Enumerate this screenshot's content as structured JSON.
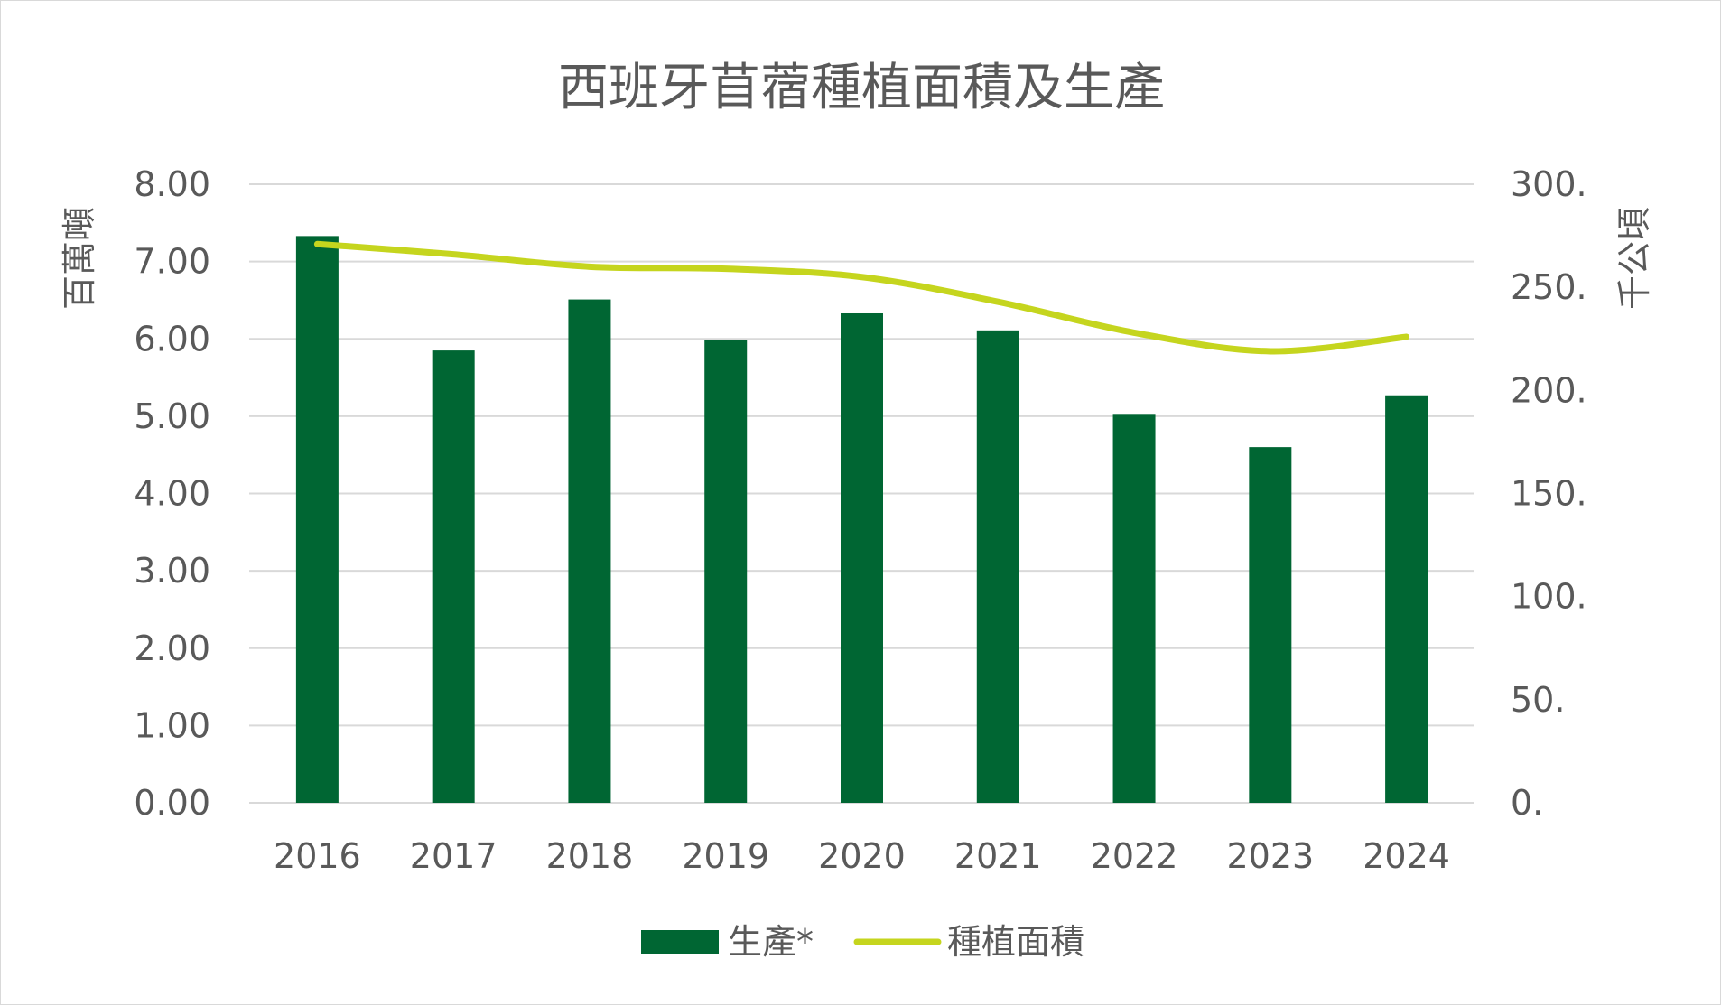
{
  "chart_data": {
    "type": "bar",
    "title": "西班牙苜蓿種植面積及生產",
    "categories": [
      "2016",
      "2017",
      "2018",
      "2019",
      "2020",
      "2021",
      "2022",
      "2023",
      "2024"
    ],
    "series": [
      {
        "name": "生產*",
        "type": "bar",
        "axis": "left",
        "color": "#006633",
        "values": [
          7.33,
          5.85,
          6.51,
          5.98,
          6.33,
          6.11,
          5.03,
          4.6,
          5.27
        ]
      },
      {
        "name": "種植面積",
        "type": "line",
        "axis": "right",
        "smooth": true,
        "color": "#C5D51E",
        "values": [
          271,
          266,
          260,
          259,
          255,
          243,
          228,
          219,
          226
        ]
      }
    ],
    "y_left": {
      "label": "百萬噸",
      "ylim": [
        0,
        8
      ],
      "ticks": [
        "0.00",
        "1.00",
        "2.00",
        "3.00",
        "4.00",
        "5.00",
        "6.00",
        "7.00",
        "8.00"
      ]
    },
    "y_right": {
      "label": "千公頃",
      "ylim": [
        0,
        300
      ],
      "ticks": [
        "0.",
        "50.",
        "100.",
        "150.",
        "200.",
        "250.",
        "300."
      ]
    },
    "grid": true,
    "legend_position": "bottom"
  }
}
